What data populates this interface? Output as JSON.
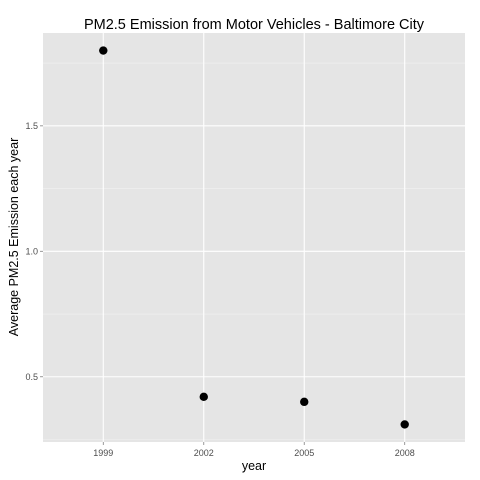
{
  "chart_data": {
    "type": "scatter",
    "title": "PM2.5 Emission from Motor Vehicles - Baltimore City",
    "xlabel": "year",
    "ylabel": "Average PM2.5 Emission each year",
    "x": [
      "1999",
      "2002",
      "2005",
      "2008"
    ],
    "y": [
      1.8,
      0.42,
      0.4,
      0.31
    ],
    "x_ticks": [
      "1999",
      "2002",
      "2005",
      "2008"
    ],
    "y_ticks": [
      "0.5",
      "1.0",
      "1.5"
    ],
    "ylim": [
      0.24,
      1.87
    ],
    "grid": true,
    "colors": {
      "panel_background": "#e5e5e5",
      "grid_major": "#ffffff",
      "grid_minor": "#f2f2f2",
      "point": "#000000"
    }
  }
}
